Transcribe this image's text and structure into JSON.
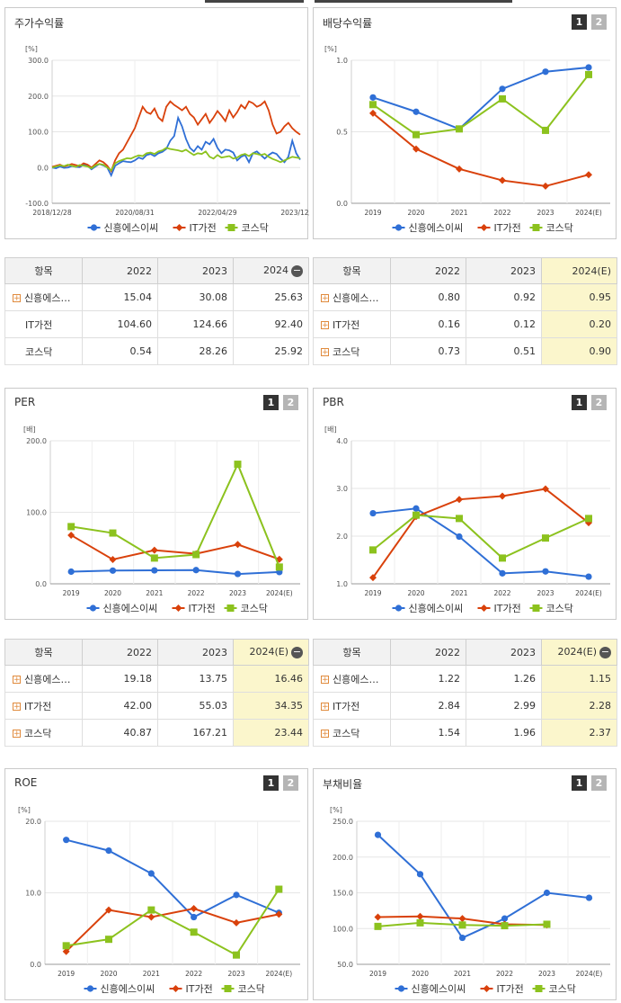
{
  "legend": [
    "신흥에스이씨",
    "IT가전",
    "코스닥"
  ],
  "colors": {
    "s1": "#2f6fd6",
    "s2": "#d9410b",
    "s3": "#8cc21e"
  },
  "pages": {
    "one": "1",
    "two": "2"
  },
  "minus_glyph": "−",
  "plus_glyph": "+",
  "tables": [
    {
      "head": [
        "항목",
        "2022",
        "2023",
        "2024"
      ],
      "minus": true,
      "rows": [
        {
          "name": "신흥에스…",
          "plus": true,
          "vals": [
            "15.04",
            "30.08",
            "25.63"
          ]
        },
        {
          "name": "IT가전",
          "plus": false,
          "vals": [
            "104.60",
            "124.66",
            "92.40"
          ]
        },
        {
          "name": "코스닥",
          "plus": false,
          "vals": [
            "0.54",
            "28.26",
            "25.92"
          ]
        }
      ]
    },
    {
      "head": [
        "항목",
        "2022",
        "2023",
        "2024(E)"
      ],
      "minus": false,
      "rows": [
        {
          "name": "신흥에스…",
          "plus": true,
          "vals": [
            "0.80",
            "0.92",
            "0.95"
          ]
        },
        {
          "name": "IT가전",
          "plus": true,
          "vals": [
            "0.16",
            "0.12",
            "0.20"
          ]
        },
        {
          "name": "코스닥",
          "plus": true,
          "vals": [
            "0.73",
            "0.51",
            "0.90"
          ]
        }
      ]
    },
    {
      "head": [
        "항목",
        "2022",
        "2023",
        "2024(E)"
      ],
      "minus": true,
      "rows": [
        {
          "name": "신흥에스…",
          "plus": true,
          "vals": [
            "19.18",
            "13.75",
            "16.46"
          ]
        },
        {
          "name": "IT가전",
          "plus": true,
          "vals": [
            "42.00",
            "55.03",
            "34.35"
          ]
        },
        {
          "name": "코스닥",
          "plus": true,
          "vals": [
            "40.87",
            "167.21",
            "23.44"
          ]
        }
      ]
    },
    {
      "head": [
        "항목",
        "2022",
        "2023",
        "2024(E)"
      ],
      "minus": true,
      "rows": [
        {
          "name": "신흥에스…",
          "plus": true,
          "vals": [
            "1.22",
            "1.26",
            "1.15"
          ]
        },
        {
          "name": "IT가전",
          "plus": true,
          "vals": [
            "2.84",
            "2.99",
            "2.28"
          ]
        },
        {
          "name": "코스닥",
          "plus": true,
          "vals": [
            "1.54",
            "1.96",
            "2.37"
          ]
        }
      ]
    }
  ],
  "chart_data": [
    {
      "type": "line",
      "title": "주가수익률",
      "ylabel": "[%]",
      "ylim": [
        -100,
        300
      ],
      "yticks": [
        "300.0",
        "200.0",
        "100.0",
        "0.0",
        "-100.0"
      ],
      "xticks": [
        "2018/12/28",
        "2020/08/31",
        "2022/04/29",
        "2023/12/28"
      ],
      "x": [
        "2019-01",
        "2019-02",
        "2019-03",
        "2019-04",
        "2019-05",
        "2019-06",
        "2019-07",
        "2019-08",
        "2019-09",
        "2019-10",
        "2019-11",
        "2019-12",
        "2020-01",
        "2020-02",
        "2020-03",
        "2020-04",
        "2020-05",
        "2020-06",
        "2020-07",
        "2020-08",
        "2020-09",
        "2020-10",
        "2020-11",
        "2020-12",
        "2021-01",
        "2021-02",
        "2021-03",
        "2021-04",
        "2021-05",
        "2021-06",
        "2021-07",
        "2021-08",
        "2021-09",
        "2021-10",
        "2021-11",
        "2021-12",
        "2022-01",
        "2022-02",
        "2022-03",
        "2022-04",
        "2022-05",
        "2022-06",
        "2022-07",
        "2022-08",
        "2022-09",
        "2022-10",
        "2022-11",
        "2022-12",
        "2023-01",
        "2023-02",
        "2023-03",
        "2023-04",
        "2023-05",
        "2023-06",
        "2023-07",
        "2023-08",
        "2023-09",
        "2023-10",
        "2023-11",
        "2023-12",
        "2024-01",
        "2024-02",
        "2024-03",
        "2024-04"
      ],
      "series": [
        {
          "name": "신흥에스이씨",
          "values": [
            0,
            -2,
            3,
            -1,
            0,
            4,
            2,
            1,
            8,
            5,
            -5,
            3,
            10,
            6,
            0,
            -22,
            5,
            12,
            18,
            16,
            15,
            20,
            28,
            24,
            35,
            38,
            32,
            40,
            44,
            52,
            75,
            88,
            139,
            115,
            80,
            55,
            45,
            60,
            50,
            72,
            65,
            80,
            55,
            40,
            50,
            48,
            42,
            20,
            30,
            35,
            15,
            40,
            45,
            35,
            25,
            35,
            42,
            38,
            25,
            15,
            30,
            75,
            40,
            22
          ]
        },
        {
          "name": "IT가전",
          "values": [
            2,
            5,
            8,
            3,
            6,
            10,
            7,
            4,
            12,
            8,
            0,
            10,
            20,
            15,
            5,
            -10,
            20,
            40,
            50,
            70,
            90,
            110,
            140,
            170,
            155,
            150,
            165,
            140,
            130,
            170,
            185,
            175,
            168,
            160,
            170,
            150,
            140,
            120,
            135,
            150,
            125,
            140,
            158,
            145,
            130,
            160,
            140,
            155,
            175,
            165,
            185,
            180,
            170,
            175,
            185,
            160,
            120,
            95,
            100,
            115,
            125,
            110,
            100,
            92
          ]
        },
        {
          "name": "코스닥",
          "values": [
            0,
            3,
            6,
            4,
            8,
            5,
            2,
            7,
            5,
            3,
            -2,
            6,
            10,
            8,
            0,
            -8,
            12,
            18,
            22,
            26,
            25,
            30,
            34,
            32,
            40,
            42,
            38,
            45,
            48,
            55,
            52,
            50,
            48,
            45,
            50,
            42,
            35,
            40,
            38,
            45,
            30,
            25,
            35,
            28,
            30,
            32,
            25,
            28,
            35,
            38,
            32,
            40,
            38,
            35,
            38,
            30,
            24,
            20,
            15,
            20,
            25,
            30,
            28,
            26
          ]
        }
      ]
    },
    {
      "type": "line",
      "title": "배당수익률",
      "ylabel": "[%]",
      "ylim": [
        0,
        1
      ],
      "yticks": [
        "1.0",
        "0.5",
        "0.0"
      ],
      "categories": [
        "2019",
        "2020",
        "2021",
        "2022",
        "2023",
        "2024(E)"
      ],
      "series": [
        {
          "name": "신흥에스이씨",
          "values": [
            0.74,
            0.64,
            0.52,
            0.8,
            0.92,
            0.95
          ]
        },
        {
          "name": "IT가전",
          "values": [
            0.63,
            0.38,
            0.24,
            0.16,
            0.12,
            0.2
          ]
        },
        {
          "name": "코스닥",
          "values": [
            0.69,
            0.48,
            0.52,
            0.73,
            0.51,
            0.9
          ]
        }
      ]
    },
    {
      "type": "line",
      "title": "PER",
      "ylabel": "[배]",
      "ylim": [
        0,
        200
      ],
      "yticks": [
        "200.0",
        "100.0",
        "0.0"
      ],
      "categories": [
        "2019",
        "2020",
        "2021",
        "2022",
        "2023",
        "2024(E)"
      ],
      "series": [
        {
          "name": "신흥에스이씨",
          "values": [
            17.0,
            18.5,
            18.8,
            19.18,
            13.75,
            16.46
          ]
        },
        {
          "name": "IT가전",
          "values": [
            68,
            34,
            47,
            42.0,
            55.03,
            34.35
          ]
        },
        {
          "name": "코스닥",
          "values": [
            80,
            71,
            36,
            40.87,
            167.21,
            23.44
          ]
        }
      ]
    },
    {
      "type": "line",
      "title": "PBR",
      "ylabel": "[배]",
      "ylim": [
        1,
        4
      ],
      "yticks": [
        "4.0",
        "3.0",
        "2.0",
        "1.0"
      ],
      "categories": [
        "2019",
        "2020",
        "2021",
        "2022",
        "2023",
        "2024(E)"
      ],
      "series": [
        {
          "name": "신흥에스이씨",
          "values": [
            2.48,
            2.58,
            1.99,
            1.22,
            1.26,
            1.15
          ]
        },
        {
          "name": "IT가전",
          "values": [
            1.13,
            2.41,
            2.77,
            2.84,
            2.99,
            2.28
          ]
        },
        {
          "name": "코스닥",
          "values": [
            1.71,
            2.44,
            2.37,
            1.54,
            1.96,
            2.37
          ]
        }
      ]
    },
    {
      "type": "line",
      "title": "ROE",
      "ylabel": "[%]",
      "ylim": [
        0,
        20
      ],
      "yticks": [
        "20.0",
        "10.0",
        "0.0"
      ],
      "categories": [
        "2019",
        "2020",
        "2021",
        "2022",
        "2023",
        "2024(E)"
      ],
      "series": [
        {
          "name": "신흥에스이씨",
          "values": [
            17.4,
            15.9,
            12.7,
            6.6,
            9.7,
            7.2
          ]
        },
        {
          "name": "IT가전",
          "values": [
            1.8,
            7.6,
            6.6,
            7.8,
            5.8,
            7.0
          ]
        },
        {
          "name": "코스닥",
          "values": [
            2.6,
            3.5,
            7.6,
            4.5,
            1.3,
            10.5
          ]
        }
      ]
    },
    {
      "type": "line",
      "title": "부채비율",
      "ylabel": "[%]",
      "ylim": [
        50,
        250
      ],
      "yticks": [
        "250.0",
        "200.0",
        "150.0",
        "100.0",
        "50.0"
      ],
      "categories": [
        "2019",
        "2020",
        "2021",
        "2022",
        "2023",
        "2024(E)"
      ],
      "series": [
        {
          "name": "신흥에스이씨",
          "values": [
            231,
            176,
            87,
            114,
            150,
            143
          ]
        },
        {
          "name": "IT가전",
          "values": [
            116,
            117,
            114,
            106,
            105,
            null
          ]
        },
        {
          "name": "코스닥",
          "values": [
            103,
            108,
            105,
            104,
            106,
            null
          ]
        }
      ]
    }
  ]
}
